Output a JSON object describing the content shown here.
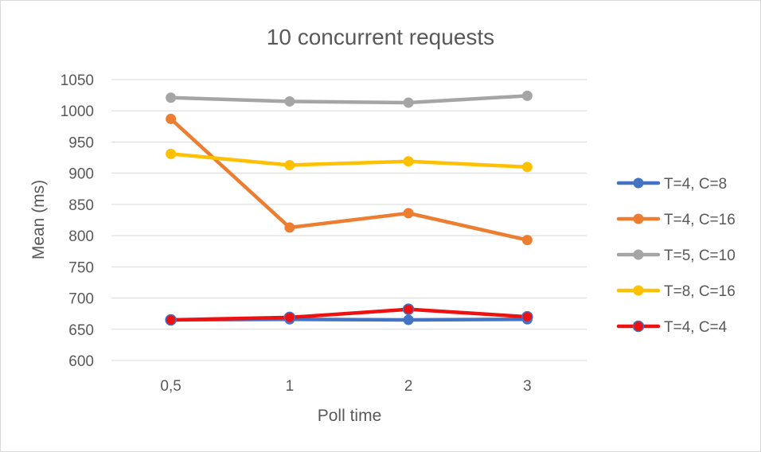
{
  "chart_data": {
    "type": "line",
    "title": "10 concurrent requests",
    "xlabel": "Poll time",
    "ylabel": "Mean (ms)",
    "categories": [
      "0,5",
      "1",
      "2",
      "3"
    ],
    "ylim": [
      600,
      1050
    ],
    "yticks": [
      600,
      650,
      700,
      750,
      800,
      850,
      900,
      950,
      1000,
      1050
    ],
    "grid": true,
    "legend_position": "right",
    "series": [
      {
        "name": "T=4, C=8",
        "color": "#4472C4",
        "values": [
          665,
          666,
          665,
          666
        ]
      },
      {
        "name": "T=4, C=16",
        "color": "#ED7D31",
        "values": [
          987,
          813,
          836,
          793
        ]
      },
      {
        "name": "T=5, C=10",
        "color": "#A5A5A5",
        "values": [
          1021,
          1015,
          1013,
          1024
        ]
      },
      {
        "name": "T=8, C=16",
        "color": "#FFC000",
        "values": [
          931,
          913,
          919,
          910
        ]
      },
      {
        "name": "T=4, C=4",
        "color": "#EE1111",
        "marker_edge": "#4472C4",
        "values": [
          665,
          669,
          682,
          670
        ]
      }
    ]
  }
}
